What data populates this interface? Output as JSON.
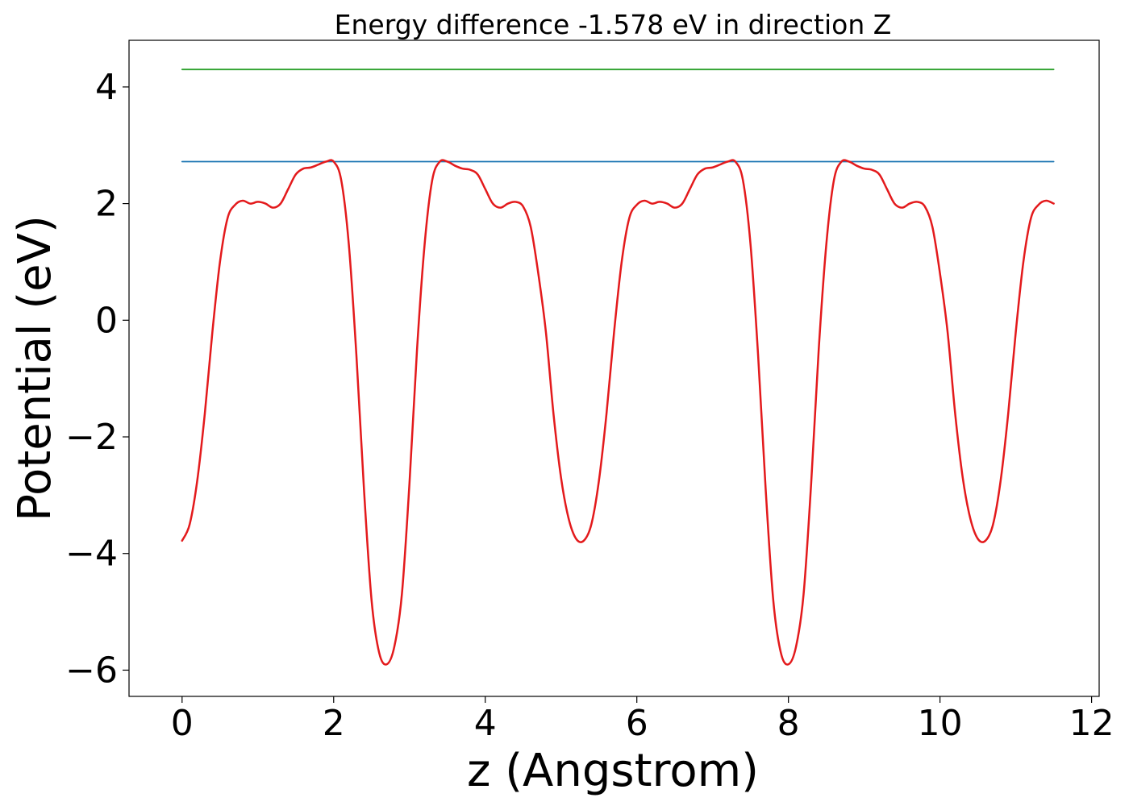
{
  "chart_data": {
    "type": "line",
    "title": "Energy difference -1.578 eV in direction Z",
    "xlabel": "z (Angstrom)",
    "ylabel": "Potential (eV)",
    "xlim": [
      -0.7,
      12.1
    ],
    "ylim": [
      -6.45,
      4.8
    ],
    "xticks": [
      0,
      2,
      4,
      6,
      8,
      10,
      12
    ],
    "yticks": [
      -6,
      -4,
      -2,
      0,
      2,
      4
    ],
    "ytick_labels": [
      "−6",
      "−4",
      "−2",
      "0",
      "2",
      "4"
    ],
    "grid": false,
    "legend": "none",
    "colors": {
      "potential": "#e31a1c",
      "average": "#1f77b4",
      "vacuum": "#2ca02c"
    },
    "series": [
      {
        "key": "potential",
        "x": [
          0.0,
          0.1,
          0.2,
          0.3,
          0.4,
          0.5,
          0.6,
          0.7,
          0.8,
          0.9,
          1.0,
          1.1,
          1.2,
          1.3,
          1.4,
          1.5,
          1.6,
          1.7,
          1.8,
          1.9,
          2.0,
          2.1,
          2.2,
          2.3,
          2.4,
          2.5,
          2.6,
          2.7,
          2.8,
          2.9,
          3.0,
          3.1,
          3.2,
          3.3,
          3.4,
          3.5,
          3.6,
          3.7,
          3.8,
          3.9,
          4.0,
          4.1,
          4.2,
          4.3,
          4.4,
          4.5,
          4.6,
          4.7,
          4.8,
          4.9,
          5.0,
          5.1,
          5.2,
          5.3,
          5.4,
          5.5,
          5.6,
          5.7,
          5.8,
          5.9,
          6.0,
          6.1,
          6.2,
          6.3,
          6.4,
          6.5,
          6.6,
          6.7,
          6.8,
          6.9,
          7.0,
          7.1,
          7.2,
          7.3,
          7.4,
          7.5,
          7.6,
          7.7,
          7.8,
          7.9,
          8.0,
          8.1,
          8.2,
          8.3,
          8.4,
          8.5,
          8.6,
          8.7,
          8.8,
          8.9,
          9.0,
          9.1,
          9.2,
          9.3,
          9.4,
          9.5,
          9.6,
          9.7,
          9.8,
          9.9,
          10.0,
          10.1,
          10.2,
          10.3,
          10.4,
          10.5,
          10.6,
          10.7,
          10.8,
          10.9,
          11.0,
          11.1,
          11.2,
          11.3,
          11.4,
          11.5
        ],
        "y": [
          -3.78,
          -3.5,
          -2.75,
          -1.6,
          -0.2,
          1.0,
          1.75,
          1.98,
          2.05,
          2.0,
          2.03,
          2.0,
          1.93,
          2.0,
          2.25,
          2.5,
          2.6,
          2.62,
          2.67,
          2.72,
          2.72,
          2.4,
          1.3,
          -0.6,
          -2.9,
          -4.8,
          -5.7,
          -5.9,
          -5.6,
          -4.7,
          -2.8,
          -0.5,
          1.3,
          2.4,
          2.72,
          2.72,
          2.65,
          2.6,
          2.58,
          2.5,
          2.25,
          2.0,
          1.93,
          2.0,
          2.03,
          1.95,
          1.6,
          0.8,
          -0.2,
          -1.6,
          -2.7,
          -3.4,
          -3.75,
          -3.78,
          -3.5,
          -2.75,
          -1.6,
          -0.2,
          1.0,
          1.75,
          1.98,
          2.05,
          2.0,
          2.03,
          2.0,
          1.93,
          2.0,
          2.25,
          2.5,
          2.6,
          2.62,
          2.67,
          2.72,
          2.72,
          2.4,
          1.3,
          -0.6,
          -2.9,
          -4.8,
          -5.7,
          -5.9,
          -5.6,
          -4.7,
          -2.8,
          -0.5,
          1.3,
          2.4,
          2.72,
          2.72,
          2.65,
          2.6,
          2.58,
          2.5,
          2.25,
          2.0,
          1.93,
          2.0,
          2.03,
          1.95,
          1.6,
          0.8,
          -0.2,
          -1.6,
          -2.7,
          -3.4,
          -3.75,
          -3.78,
          -3.5,
          -2.75,
          -1.6,
          -0.2,
          1.0,
          1.75,
          1.98,
          2.05,
          2.0
        ]
      },
      {
        "key": "average",
        "x": [
          0.0,
          11.5
        ],
        "y": [
          2.72,
          2.72
        ]
      },
      {
        "key": "vacuum",
        "x": [
          0.0,
          11.5
        ],
        "y": [
          4.3,
          4.3
        ]
      }
    ]
  }
}
